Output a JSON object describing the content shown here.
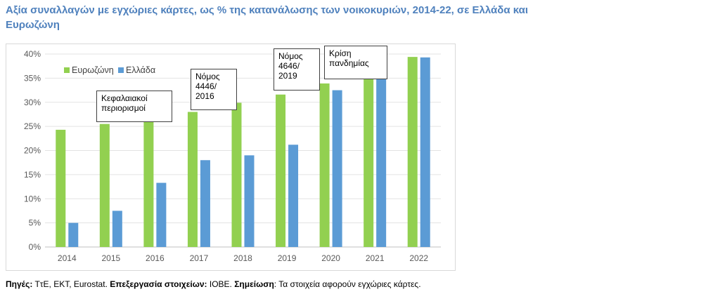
{
  "title": "Αξία συναλλαγών με εγχώριες κάρτες, ως % της κατανάλωσης των νοικοκυριών, 2014-22, σε Ελλάδα και Ευρωζώνη",
  "chart_data": {
    "type": "bar",
    "title": "",
    "xlabel": "",
    "ylabel": "",
    "categories": [
      "2014",
      "2015",
      "2016",
      "2017",
      "2018",
      "2019",
      "2020",
      "2021",
      "2022"
    ],
    "series": [
      {
        "name": "Ευρωζώνη",
        "color": "#92d050",
        "values": [
          24.3,
          25.5,
          26.7,
          28.0,
          29.9,
          31.6,
          33.9,
          36.4,
          39.4
        ]
      },
      {
        "name": "Ελλάδα",
        "color": "#5b9bd5",
        "values": [
          5.0,
          7.5,
          13.3,
          18.0,
          19.0,
          21.2,
          32.5,
          37.1,
          39.3
        ]
      }
    ],
    "ylim": [
      0,
      40
    ],
    "yticks": [
      "0%",
      "5%",
      "10%",
      "15%",
      "20%",
      "25%",
      "30%",
      "35%",
      "40%"
    ],
    "grid": true,
    "legend_position": "top-left",
    "annotations": [
      {
        "text": "Κεφαλαιακοί\nπεριορισμοί",
        "year": "2015"
      },
      {
        "text": "Νόμος\n4446/\n2016",
        "year": "2017"
      },
      {
        "text": "Νόμος\n4646/\n2019",
        "year": "2019"
      },
      {
        "text": "Κρίση\nπανδημίας",
        "year": "2020"
      }
    ]
  },
  "footer": {
    "sources_label": "Πηγές:",
    "sources_text": " ΤτΕ, ΕΚΤ, Eurostat. ",
    "processing_label": "Επεξεργασία στοιχείων:",
    "processing_text": " ΙΟΒΕ. ",
    "note_label": "Σημείωση",
    "note_text": ": Τα στοιχεία αφορούν εγχώριες κάρτες."
  }
}
